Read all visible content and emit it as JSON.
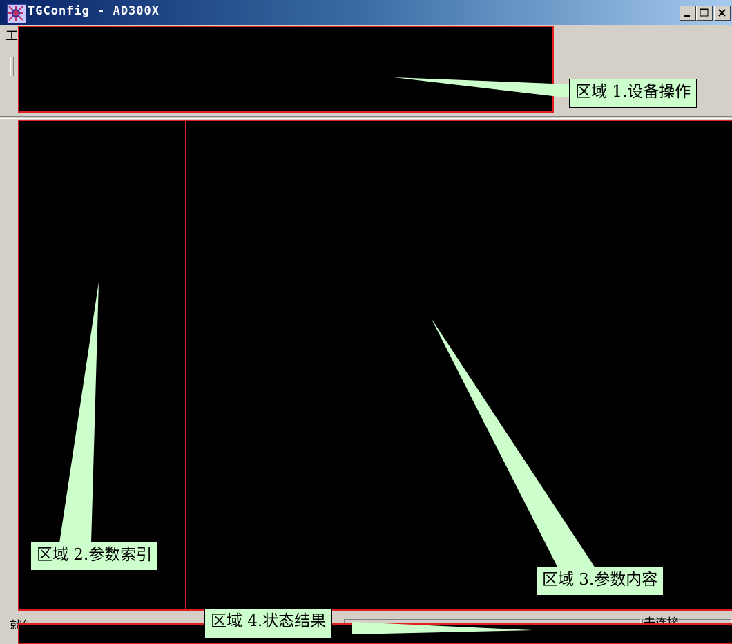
{
  "window": {
    "title": "TGConfig - AD300X",
    "app_icon": "app-logo-icon",
    "controls": [
      "minimize-icon",
      "maximize-icon",
      "close-icon"
    ]
  },
  "menubar": {
    "first_item": "工"
  },
  "statusbar": {
    "ready_text": "就绪",
    "pane_right_text": "未连接"
  },
  "regions": [
    {
      "id": "region-1",
      "label": "区域 1.设备操作"
    },
    {
      "id": "region-2",
      "label": "区域 2.参数索引"
    },
    {
      "id": "region-3",
      "label": "区域 3.参数内容"
    },
    {
      "id": "region-4",
      "label": "区域 4.状态结果"
    }
  ],
  "colors": {
    "region_fill": "#000000",
    "region_border": "#e02020",
    "callout_fill": "#ccffcc",
    "window_chrome": "#d4d0c8",
    "titlebar_start": "#0a246a"
  }
}
